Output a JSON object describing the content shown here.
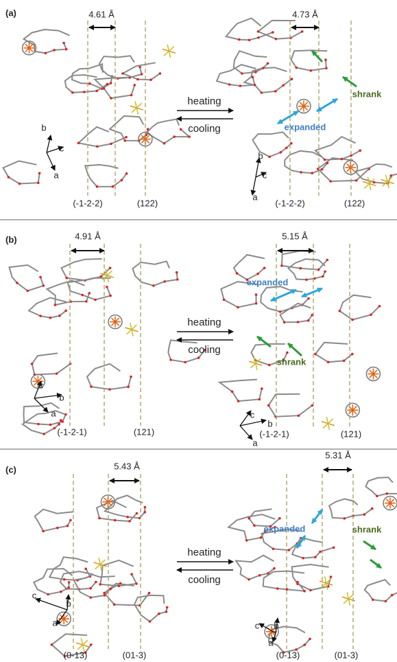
{
  "panels": [
    {
      "label": "(a)",
      "before": {
        "distance": "4.61 Å",
        "planes": [
          "(-1-2-2)",
          "(122)"
        ],
        "axes": [
          "b",
          "c",
          "a"
        ]
      },
      "heating": "heating",
      "cooling": "cooling",
      "after": {
        "distance": "4.73 Å",
        "planes": [
          "(-1-2-2)",
          "(122)"
        ],
        "axes": [
          "b",
          "c",
          "a"
        ],
        "expanded": "expanded",
        "shrank": "shrank"
      }
    },
    {
      "label": "(b)",
      "before": {
        "distance": "4.91 Å",
        "planes": [
          "(-1-2-1)",
          "(121)"
        ],
        "axes": [
          "c",
          "b",
          "a"
        ]
      },
      "heating": "heating",
      "cooling": "cooling",
      "after": {
        "distance": "5.15 Å",
        "planes": [
          "(-1-2-1)",
          "(121)"
        ],
        "axes": [
          "c",
          "b",
          "a"
        ],
        "expanded": "expanded",
        "shrank": "shrank"
      }
    },
    {
      "label": "(c)",
      "before": {
        "distance": "5.43 Å",
        "planes": [
          "(0-13)",
          "(01-3)"
        ],
        "axes": [
          "c",
          "b",
          "a"
        ]
      },
      "heating": "heating",
      "cooling": "cooling",
      "after": {
        "distance": "5.31 Å",
        "planes": [
          "(0-13)",
          "(01-3)"
        ],
        "axes": [
          "c",
          "b",
          "a"
        ],
        "expanded": "expanded",
        "shrank": "shrank"
      }
    }
  ]
}
